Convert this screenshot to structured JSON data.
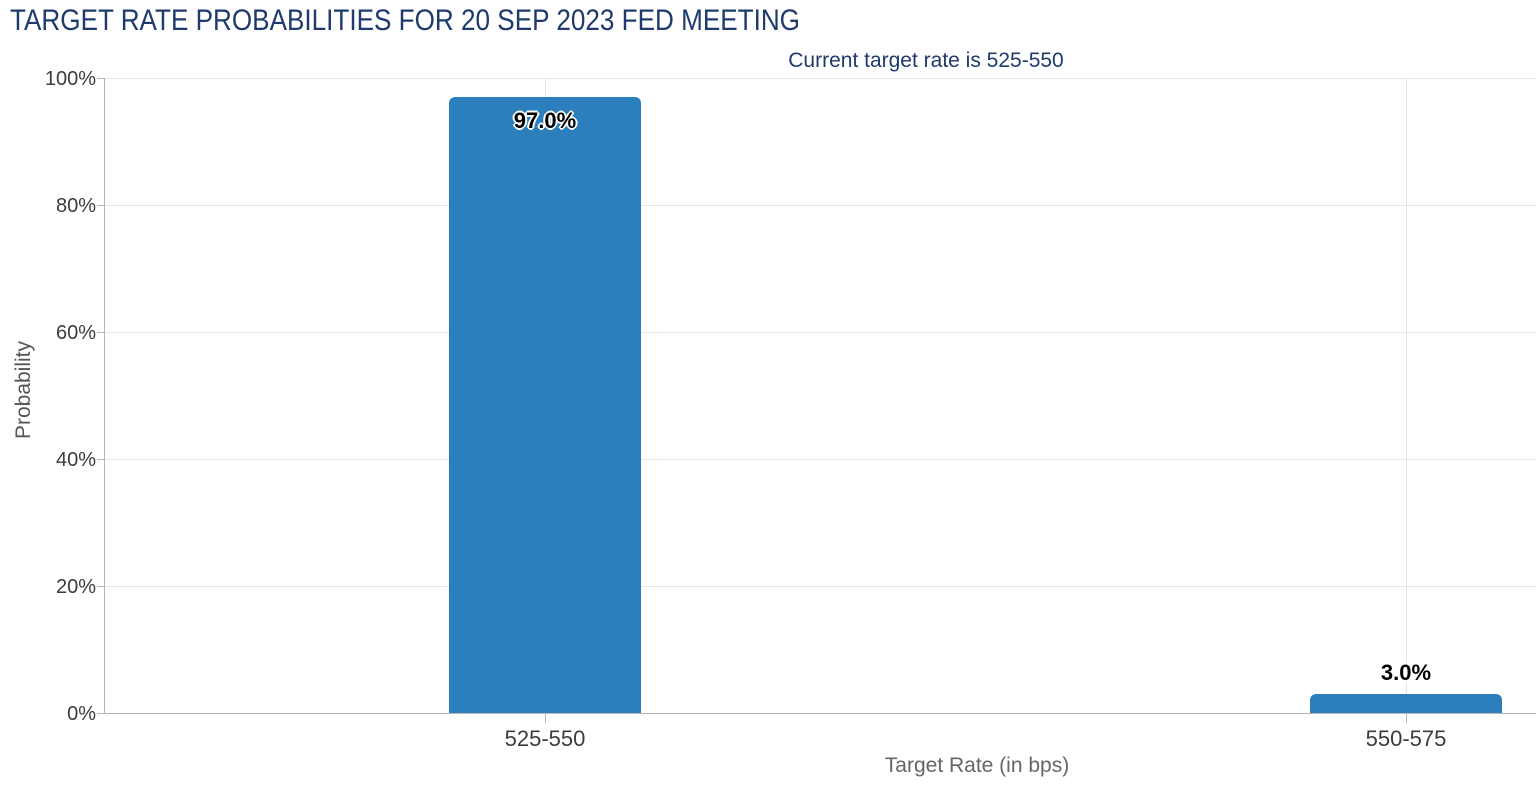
{
  "chart_data": {
    "type": "bar",
    "title": "TARGET RATE PROBABILITIES FOR 20 SEP 2023 FED MEETING",
    "subtitle": "Current target rate is 525-550",
    "xlabel": "Target Rate (in bps)",
    "ylabel": "Probability",
    "categories": [
      "525-550",
      "550-575"
    ],
    "values": [
      97.0,
      3.0
    ],
    "value_labels": [
      "97.0%",
      "3.0%"
    ],
    "ylim": [
      0,
      100
    ],
    "yticks": [
      0,
      20,
      40,
      60,
      80,
      100
    ],
    "ytick_labels": [
      "0%",
      "20%",
      "40%",
      "60%",
      "80%",
      "100%"
    ],
    "grid": true,
    "legend_position": "none"
  },
  "colors": {
    "title": "#1f3a6d",
    "subtitle": "#1f3a6d",
    "bar": "#2b7fbd",
    "gridline": "#e5e5e5",
    "axis_line": "#b5b5b5",
    "tick_label": "#3c3c3c",
    "axis_title": "#666666",
    "background": "#ffffff"
  }
}
